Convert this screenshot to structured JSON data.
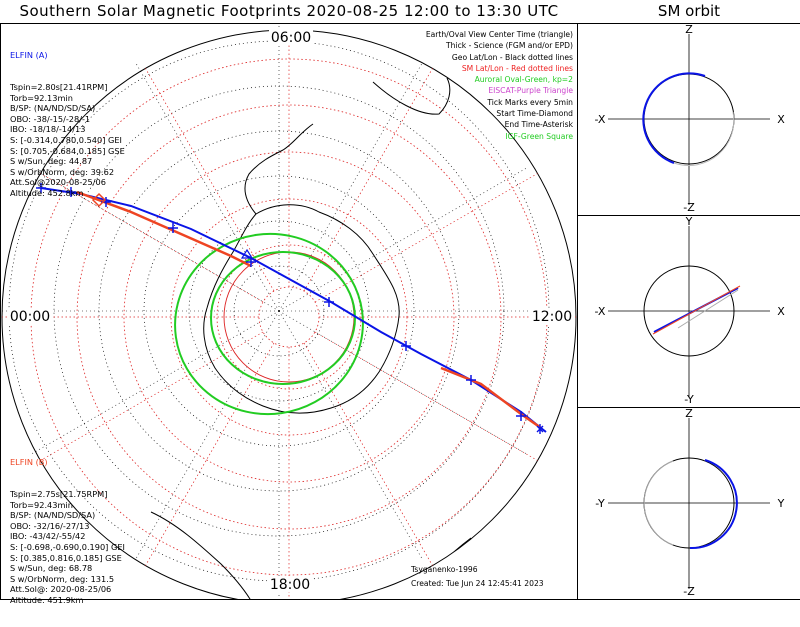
{
  "title": "Southern Solar Magnetic Footprints 2020-08-25 12:00 to 13:30 UTC",
  "orbit_title": "SM orbit",
  "colors": {
    "blue": "#0a14e6",
    "red": "#ee4422",
    "green": "#22cc22",
    "purple": "#cc44cc",
    "gray": "#aaaaaa"
  },
  "map": {
    "time_labels": {
      "top": "06:00",
      "left": "00:00",
      "right": "12:00",
      "bottom": "18:00"
    }
  },
  "legend": [
    {
      "text": "Earth/Oval View Center Time (triangle)",
      "color": "#000000"
    },
    {
      "text": "Thick - Science (FGM and/or EPD)",
      "color": "#000000"
    },
    {
      "text": "Geo Lat/Lon - Black dotted lines",
      "color": "#000000"
    },
    {
      "text": "SM Lat/Lon - Red dotted lines",
      "color": "#ee2222"
    },
    {
      "text": "Auroral Oval-Green, kp=2",
      "color": "#22cc22"
    },
    {
      "text": "EISCAT-Purple Triangle",
      "color": "#cc44cc"
    },
    {
      "text": "Tick Marks every 5min",
      "color": "#000000"
    },
    {
      "text": "Start Time-Diamond",
      "color": "#000000"
    },
    {
      "text": "End Time-Asterisk",
      "color": "#000000"
    },
    {
      "text": "IGF-Green Square",
      "color": "#22cc22"
    }
  ],
  "elfin_a": {
    "name": "ELFIN (A)",
    "lines": [
      "Tspin=2.80s[21.41RPM]",
      "Torb=92.13min",
      "B/SP: (NA/ND/SD/SA)",
      "OBO: -38/-15/-28/-1",
      "IBO: -18/18/-14/13",
      "S: [-0.314,0.780,0.540] GEI",
      "S: [0.705,-0.684,0.185] GSE",
      "S w/Sun, deg: 44.87",
      "S w/OrbNorm, deg: 39.62",
      "Att.Sol@2020-08-25/06",
      "Altitude: 452.8km"
    ]
  },
  "elfin_b": {
    "name": "ELFIN (B)",
    "lines": [
      "Tspin=2.75s[21.75RPM]",
      "Torb=92.43min",
      "B/SP: (NA/ND/SD/SA)",
      "OBO: -32/16/-27/13",
      "IBO: -43/42/-55/42",
      "S: [-0.698,-0.690,0.190] GEI",
      "S: [0.385,0.816,0.185] GSE",
      "S w/Sun, deg: 68.78",
      "S w/OrbNorm, deg: 131.5",
      "Att.Sol@: 2020-08-25/06",
      "Altitude: 451.9km"
    ]
  },
  "credit": {
    "author": "Tsyganenko-1996",
    "created": "Created: Tue Jun 24 12:45:41 2023"
  },
  "orbit_panels": [
    {
      "top": "Z",
      "bottom": "-Z",
      "left": "-X",
      "right": "X"
    },
    {
      "top": "Y",
      "bottom": "-Y",
      "left": "-X",
      "right": "X"
    },
    {
      "top": "Z",
      "bottom": "-Z",
      "left": "-Y",
      "right": "Y"
    }
  ]
}
